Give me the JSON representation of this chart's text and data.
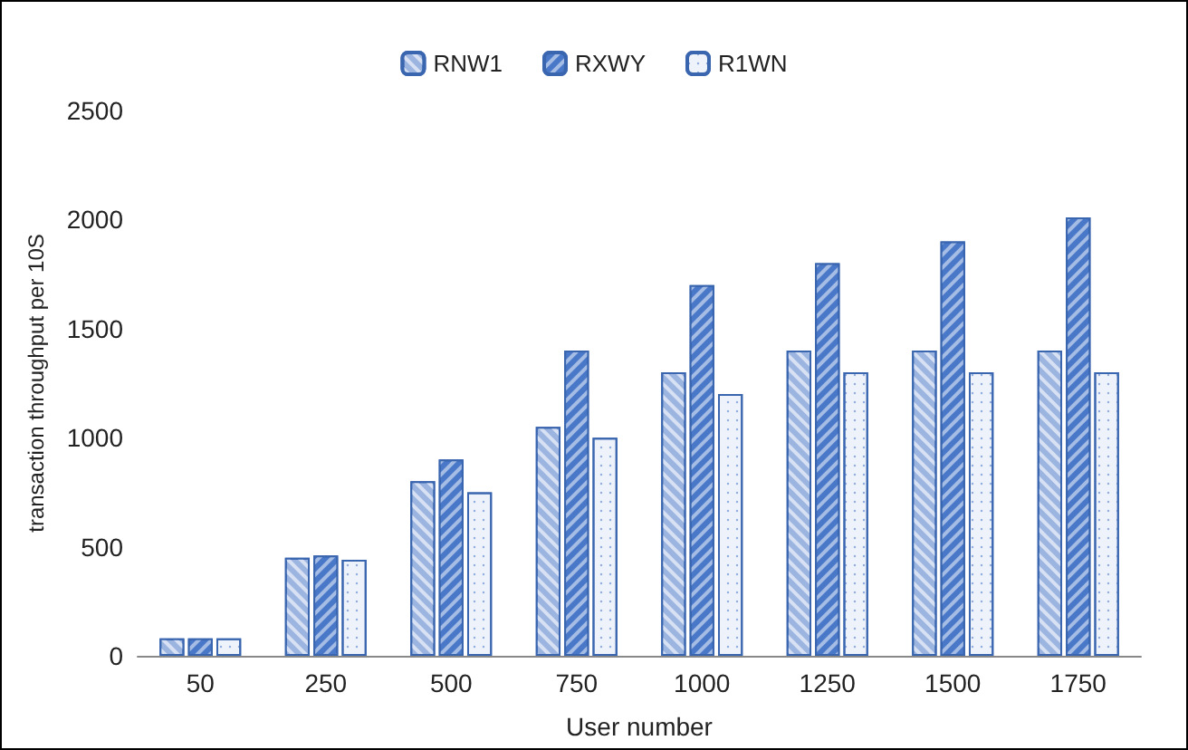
{
  "chart_data": {
    "type": "bar",
    "xlabel": "User number",
    "ylabel": "transaction throughput per 10S",
    "categories": [
      "50",
      "250",
      "500",
      "750",
      "1000",
      "1250",
      "1500",
      "1750"
    ],
    "series": [
      {
        "name": "RNW1",
        "color": "#9bb5e0",
        "values": [
          80,
          450,
          800,
          1050,
          1300,
          1400,
          1400,
          1400
        ]
      },
      {
        "name": "RXWY",
        "color": "#4a78c8",
        "values": [
          80,
          460,
          900,
          1400,
          1700,
          1800,
          1900,
          2010
        ]
      },
      {
        "name": "R1WN",
        "color": "#eef2fa",
        "values": [
          80,
          440,
          750,
          1000,
          1200,
          1300,
          1300,
          1300
        ]
      }
    ],
    "ylim": [
      0,
      2500
    ],
    "yticks": [
      0,
      500,
      1000,
      1500,
      2000,
      2500
    ],
    "grid": false,
    "legend": "top"
  }
}
